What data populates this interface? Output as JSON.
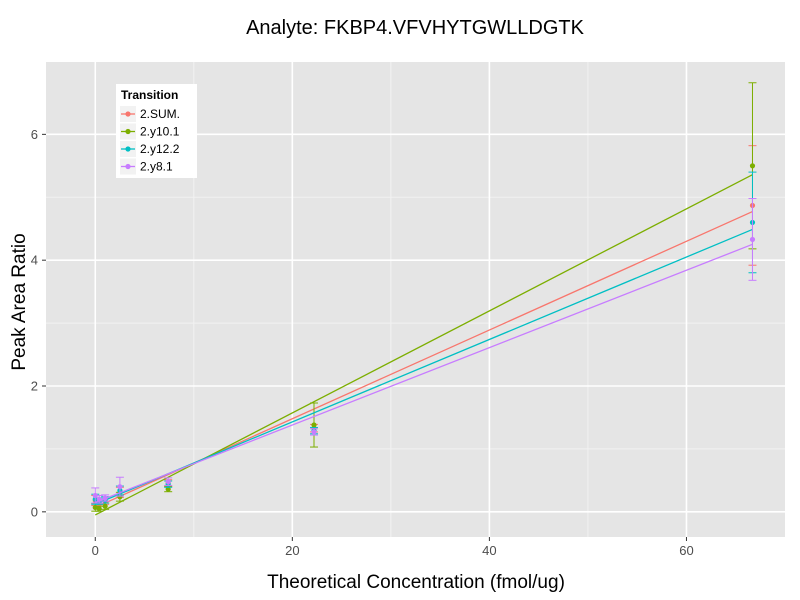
{
  "chart_data": {
    "type": "scatter",
    "title": "Analyte: FKBP4.VFVHYTGWLLDGTK",
    "xlabel": "Theoretical Concentration (fmol/ug)",
    "ylabel": "Peak Area Ratio",
    "xlim": [
      -5,
      70
    ],
    "ylim": [
      -0.4,
      7.15
    ],
    "x_ticks": [
      0,
      20,
      40,
      60
    ],
    "y_ticks": [
      0,
      2,
      4,
      6
    ],
    "x_tick_labels": [
      "0",
      "20",
      "40",
      "60"
    ],
    "y_tick_labels": [
      "0",
      "2",
      "4",
      "6"
    ],
    "legend": {
      "title": "Transition",
      "position": "top-left"
    },
    "series": [
      {
        "name": "2.SUM.",
        "color": "#F8766D",
        "x": [
          0,
          0.4,
          1.0,
          2.5,
          7.4,
          22.2,
          66.7
        ],
        "y": [
          0.18,
          0.14,
          0.17,
          0.31,
          0.46,
          1.33,
          4.87
        ],
        "err": [
          0.08,
          0.05,
          0.05,
          0.08,
          0.05,
          0.06,
          0.95
        ],
        "fit": {
          "slope": 0.0705,
          "intercept": 0.07
        }
      },
      {
        "name": "2.y10.1",
        "color": "#7CAE00",
        "x": [
          0,
          0.4,
          1.0,
          2.5,
          7.4,
          22.2,
          66.7
        ],
        "y": [
          0.07,
          0.05,
          0.09,
          0.24,
          0.36,
          1.38,
          5.5
        ],
        "err": [
          0.06,
          0.04,
          0.05,
          0.07,
          0.04,
          0.35,
          1.32
        ],
        "fit": {
          "slope": 0.0811,
          "intercept": -0.05
        }
      },
      {
        "name": "2.y12.2",
        "color": "#00BFC4",
        "x": [
          0,
          0.4,
          1.0,
          2.5,
          7.4,
          22.2,
          66.7
        ],
        "y": [
          0.2,
          0.17,
          0.19,
          0.34,
          0.44,
          1.29,
          4.6
        ],
        "err": [
          0.08,
          0.05,
          0.05,
          0.07,
          0.05,
          0.05,
          0.8
        ],
        "fit": {
          "slope": 0.0655,
          "intercept": 0.12
        }
      },
      {
        "name": "2.y8.1",
        "color": "#C77CFF",
        "x": [
          0,
          0.4,
          1.0,
          2.5,
          7.4,
          22.2,
          66.7
        ],
        "y": [
          0.26,
          0.2,
          0.22,
          0.4,
          0.48,
          1.27,
          4.33
        ],
        "err": [
          0.12,
          0.06,
          0.05,
          0.15,
          0.06,
          0.05,
          0.65
        ],
        "fit": {
          "slope": 0.0615,
          "intercept": 0.15
        }
      }
    ]
  }
}
